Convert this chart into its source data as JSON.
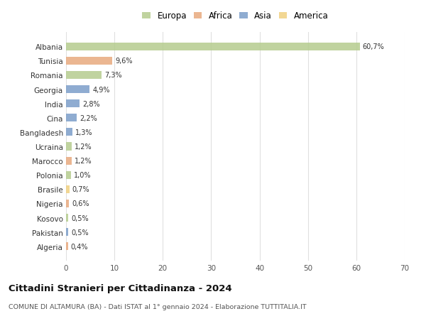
{
  "countries": [
    "Albania",
    "Tunisia",
    "Romania",
    "Georgia",
    "India",
    "Cina",
    "Bangladesh",
    "Ucraina",
    "Marocco",
    "Polonia",
    "Brasile",
    "Nigeria",
    "Kosovo",
    "Pakistan",
    "Algeria"
  ],
  "values": [
    60.7,
    9.6,
    7.3,
    4.9,
    2.8,
    2.2,
    1.3,
    1.2,
    1.2,
    1.0,
    0.7,
    0.6,
    0.5,
    0.5,
    0.4
  ],
  "labels": [
    "60,7%",
    "9,6%",
    "7,3%",
    "4,9%",
    "2,8%",
    "2,2%",
    "1,3%",
    "1,2%",
    "1,2%",
    "1,0%",
    "0,7%",
    "0,6%",
    "0,5%",
    "0,5%",
    "0,4%"
  ],
  "regions": [
    "Europa",
    "Africa",
    "Europa",
    "Asia",
    "Asia",
    "Asia",
    "Asia",
    "Europa",
    "Africa",
    "Europa",
    "America",
    "Africa",
    "Europa",
    "Asia",
    "Africa"
  ],
  "colors": {
    "Europa": "#b5cc8e",
    "Africa": "#e8a97e",
    "Asia": "#7b9ec9",
    "America": "#f0d080"
  },
  "xlim": [
    0,
    70
  ],
  "xticks": [
    0,
    10,
    20,
    30,
    40,
    50,
    60,
    70
  ],
  "title": "Cittadini Stranieri per Cittadinanza - 2024",
  "subtitle": "COMUNE DI ALTAMURA (BA) - Dati ISTAT al 1° gennaio 2024 - Elaborazione TUTTITALIA.IT",
  "background_color": "#ffffff",
  "grid_color": "#e0e0e0",
  "bar_height": 0.55,
  "legend_order": [
    "Europa",
    "Africa",
    "Asia",
    "America"
  ]
}
